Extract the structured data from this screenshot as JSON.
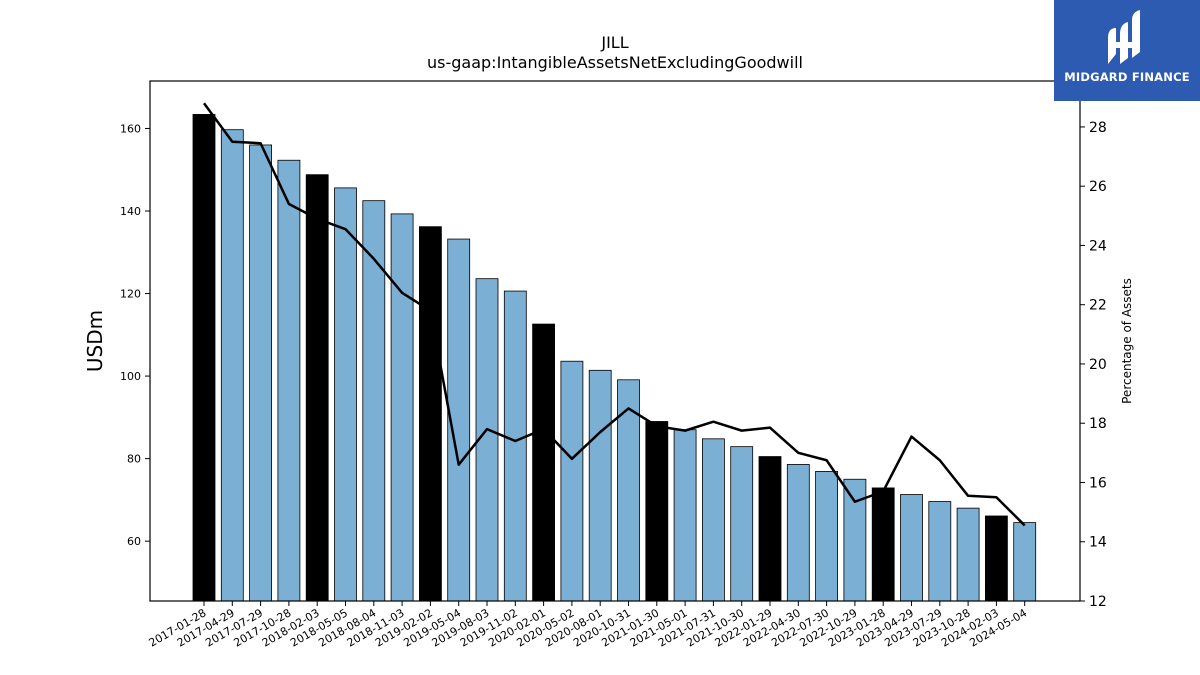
{
  "brand": {
    "name": "MIDGARD FINANCE",
    "color": "#2d5bb1"
  },
  "chart_data": {
    "type": "bar",
    "title": "JILL",
    "subtitle": "us-gaap:IntangibleAssetsNetExcludingGoodwill",
    "ylabel": "USDm",
    "y2label": "Percentage of Assets",
    "ylim": [
      45.5,
      171.5
    ],
    "y2lim": [
      12,
      29.55
    ],
    "yticks": [
      60,
      80,
      100,
      120,
      140,
      160
    ],
    "y2ticks": [
      12,
      14,
      16,
      18,
      20,
      22,
      24,
      26,
      28
    ],
    "grid": false,
    "colors": {
      "bar": "#7bafd4",
      "bar_highlight": "#000000",
      "line": "#000000"
    },
    "categories": [
      "2017-01-28",
      "2017-04-29",
      "2017-07-29",
      "2017-10-28",
      "2018-02-03",
      "2018-05-05",
      "2018-08-04",
      "2018-11-03",
      "2019-02-02",
      "2019-05-04",
      "2019-08-03",
      "2019-11-02",
      "2020-02-01",
      "2020-05-02",
      "2020-08-01",
      "2020-10-31",
      "2021-01-30",
      "2021-05-01",
      "2021-07-31",
      "2021-10-30",
      "2022-01-29",
      "2022-04-30",
      "2022-07-30",
      "2022-10-29",
      "2023-01-28",
      "2023-04-29",
      "2023-07-29",
      "2023-10-28",
      "2024-02-03",
      "2024-05-04"
    ],
    "series": [
      {
        "type": "bar",
        "values": [
          163.4,
          159.7,
          156.0,
          152.3,
          148.8,
          145.6,
          142.5,
          139.3,
          136.2,
          133.2,
          123.6,
          120.6,
          112.6,
          103.6,
          101.4,
          99.1,
          89.0,
          87.0,
          84.8,
          82.9,
          80.5,
          78.6,
          76.9,
          75.0,
          72.9,
          71.3,
          69.6,
          68.0,
          66.1,
          64.5
        ]
      },
      {
        "type": "line",
        "axis": "secondary",
        "values": [
          28.8,
          27.5,
          27.45,
          25.4,
          24.9,
          24.55,
          23.55,
          22.4,
          21.8,
          16.6,
          17.8,
          17.4,
          17.8,
          16.8,
          17.7,
          18.5,
          17.9,
          17.75,
          18.05,
          17.75,
          17.85,
          17.0,
          16.75,
          15.35,
          15.7,
          17.55,
          16.75,
          15.55,
          15.5,
          14.55
        ]
      }
    ],
    "highlight_indices": [
      0,
      4,
      8,
      12,
      16,
      20,
      24,
      28
    ]
  }
}
